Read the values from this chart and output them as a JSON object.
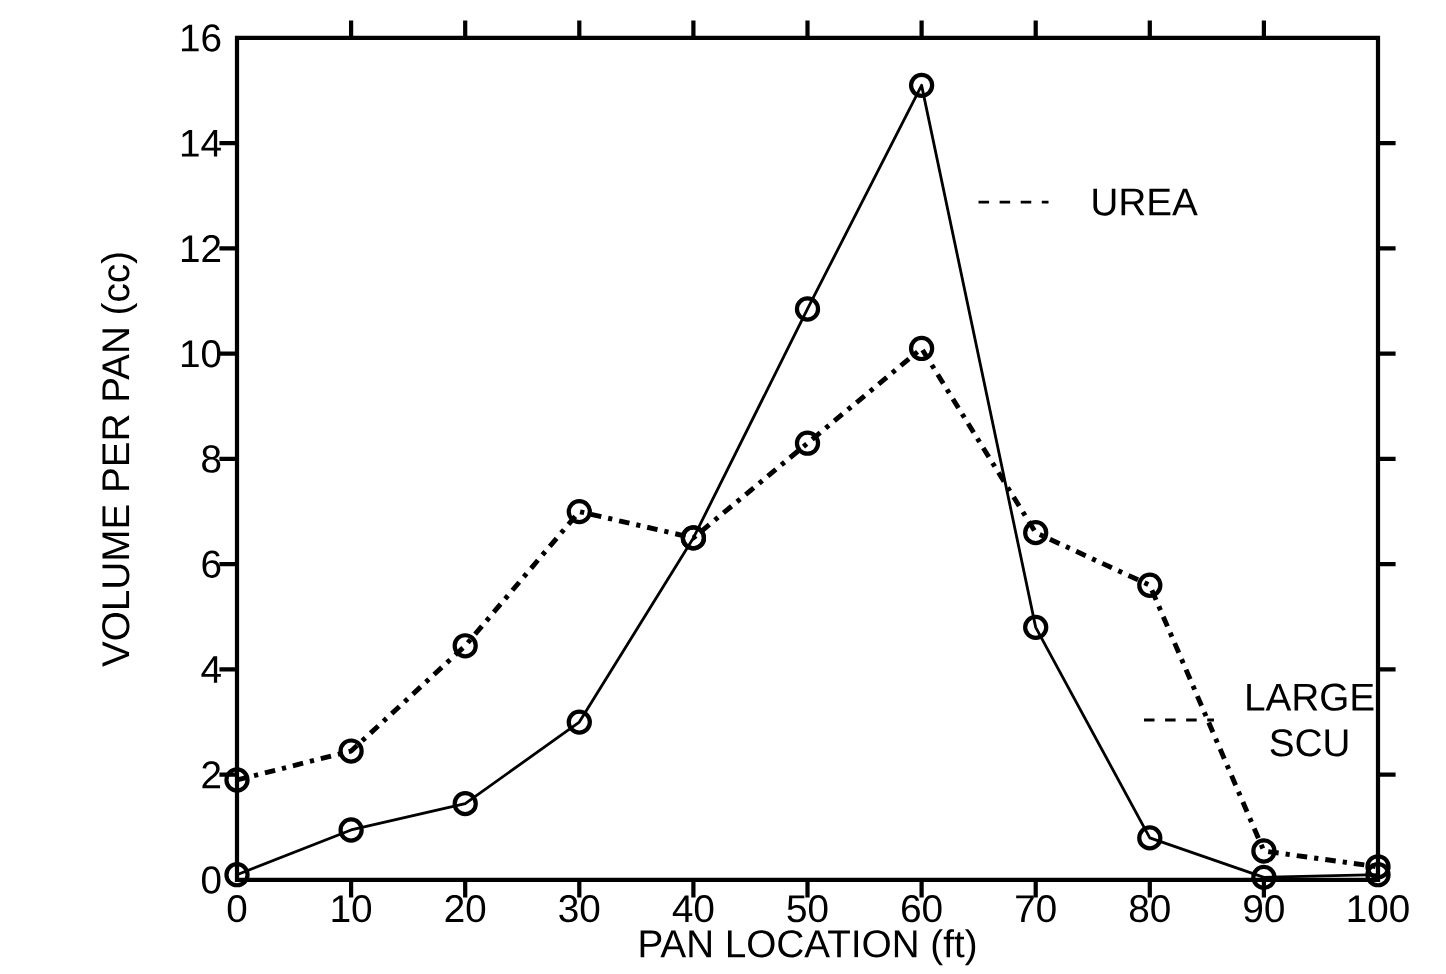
{
  "chart_data": {
    "type": "line",
    "xlabel": "PAN LOCATION (ft)",
    "ylabel": "VOLUME PER PAN (cc)",
    "x": [
      0,
      10,
      20,
      30,
      40,
      50,
      60,
      70,
      80,
      90,
      100
    ],
    "series": [
      {
        "color": "#000000",
        "line_style": "solid",
        "values": [
          0.1,
          0.95,
          1.45,
          3.0,
          6.5,
          10.85,
          15.1,
          4.8,
          0.8,
          0.05,
          0.1
        ]
      },
      {
        "color": "#000000",
        "line_style": "dashed",
        "values": [
          1.9,
          2.45,
          4.45,
          7.0,
          6.5,
          8.3,
          10.1,
          6.6,
          5.6,
          0.55,
          0.25
        ]
      }
    ],
    "annotations": [
      "UREA",
      "LARGE SCU"
    ],
    "xlim": [
      0,
      100
    ],
    "xticks": [
      0,
      10,
      20,
      30,
      40,
      50,
      60,
      70,
      80,
      90,
      100
    ],
    "ylim": [
      0,
      16
    ],
    "yticks": [
      0,
      2,
      4,
      6,
      8,
      10,
      12,
      14,
      16
    ],
    "marker": "circle",
    "grid": false
  }
}
